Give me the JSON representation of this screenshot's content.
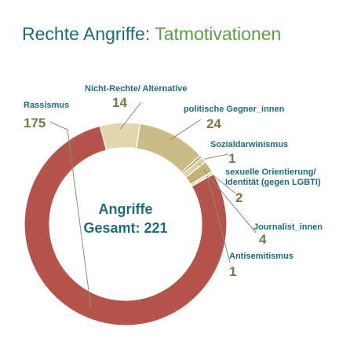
{
  "chart_data": {
    "type": "pie",
    "title": "Rechte Angriffe:",
    "subtitle": "Tatmotivationen",
    "center_text": [
      "Angriffe",
      "Gesamt: 221"
    ],
    "categories": [
      "Rassismus",
      "Nicht-Rechte/ Alternative",
      "politische Gegner_innen",
      "Sozialdarwinismus",
      "sexuelle Orientierung/\nIdentität (gegen LGBTI)",
      "Journalist_innen",
      "Antisemitismus"
    ],
    "values": [
      175,
      14,
      24,
      1,
      2,
      4,
      1
    ],
    "colors": [
      "#b5544b",
      "#e4d6ad",
      "#cbbb84",
      "#b9a96c",
      "#dccfa2",
      "#c4b27a",
      "#e6dab2"
    ]
  }
}
